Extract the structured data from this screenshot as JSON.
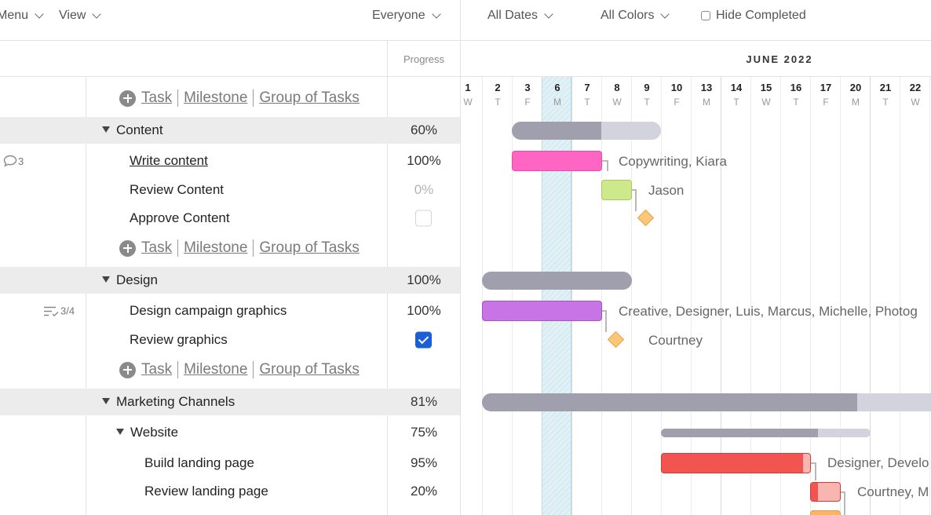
{
  "toolbar": {
    "menu": "Menu",
    "view": "View",
    "everyone": "Everyone",
    "all_dates": "All Dates",
    "all_colors": "All Colors",
    "hide_completed": "Hide Completed"
  },
  "grid": {
    "progress_header": "Progress"
  },
  "adder": {
    "task": "Task",
    "milestone": "Milestone",
    "group": "Group of Tasks"
  },
  "rows": {
    "content": {
      "name": "Content",
      "progress": "60%"
    },
    "write_content": {
      "name": "Write content",
      "progress": "100%",
      "comments": "3"
    },
    "review_content": {
      "name": "Review Content",
      "progress": "0%"
    },
    "approve_content": {
      "name": "Approve Content",
      "checked": false
    },
    "design": {
      "name": "Design",
      "progress": "100%"
    },
    "design_graphics": {
      "name": "Design campaign graphics",
      "progress": "100%",
      "subtasks": "3/4"
    },
    "review_graphics": {
      "name": "Review graphics",
      "checked": true
    },
    "marketing": {
      "name": "Marketing Channels",
      "progress": "81%"
    },
    "website": {
      "name": "Website",
      "progress": "75%"
    },
    "build_landing": {
      "name": "Build landing page",
      "progress": "95%"
    },
    "review_landing": {
      "name": "Review landing page",
      "progress": "20%"
    }
  },
  "gantt": {
    "month": "JUNE 2022",
    "days": [
      {
        "n": "1",
        "w": "W"
      },
      {
        "n": "2",
        "w": "T"
      },
      {
        "n": "3",
        "w": "F"
      },
      {
        "n": "6",
        "w": "M"
      },
      {
        "n": "7",
        "w": "T"
      },
      {
        "n": "8",
        "w": "W"
      },
      {
        "n": "9",
        "w": "T"
      },
      {
        "n": "10",
        "w": "F"
      },
      {
        "n": "13",
        "w": "M"
      },
      {
        "n": "14",
        "w": "T"
      },
      {
        "n": "15",
        "w": "W"
      },
      {
        "n": "16",
        "w": "T"
      },
      {
        "n": "17",
        "w": "F"
      },
      {
        "n": "20",
        "w": "M"
      },
      {
        "n": "21",
        "w": "T"
      },
      {
        "n": "22",
        "w": "W"
      }
    ],
    "today": "6",
    "assignees": {
      "write_content": "Copywriting, Kiara",
      "review_content": "Jason",
      "design_graphics": "Creative, Designer, Luis, Marcus, Michelle, Photog",
      "review_graphics": "Courtney",
      "build_landing": "Designer, Develo",
      "review_landing": "Courtney, M"
    },
    "colors": {
      "group_fill": "#9f9fae",
      "group_track": "#d3d3de",
      "write_content": "#ff66c4",
      "review_content": "#cde98a",
      "design_graphics": "#c974e6",
      "build_landing": "#f25450",
      "review_landing": "#f9b5b0",
      "milestone": "#fcc776"
    }
  }
}
